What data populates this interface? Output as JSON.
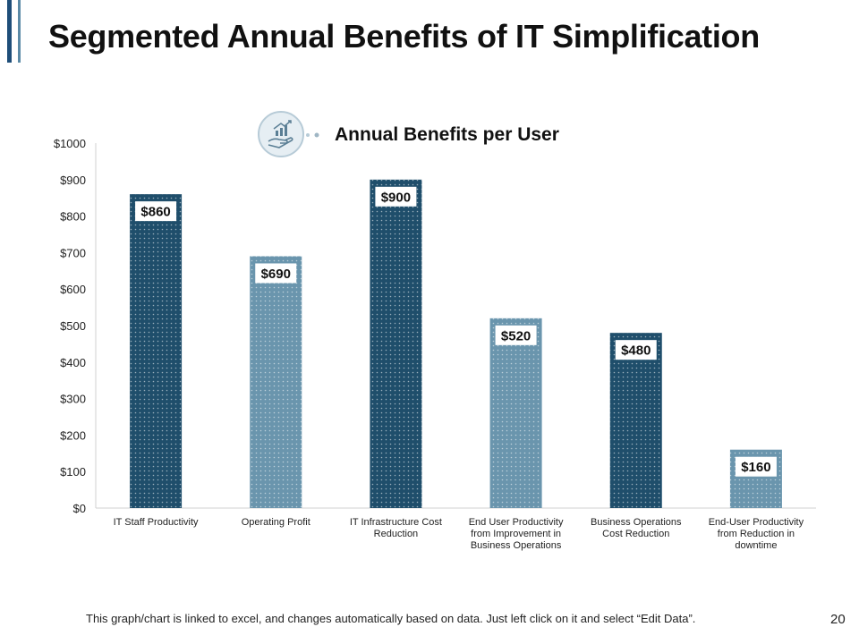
{
  "slide": {
    "title": "Segmented Annual Benefits of IT Simplification",
    "footnote": "This graph/chart is linked to excel, and changes automatically based on data. Just left click on it and select “Edit Data”.",
    "page_number": "20"
  },
  "legend": {
    "label": "Annual Benefits per User",
    "icon": "hand-with-growth-chart-icon"
  },
  "colors": {
    "dark": "#1f4e6b",
    "light": "#6a95ad",
    "accent": "#1f4e79"
  },
  "chart_data": {
    "type": "bar",
    "title": "",
    "legend": "Annual Benefits per User",
    "categories": [
      "IT Staff Productivity",
      "Operating Profit",
      "IT Infrastructure Cost Reduction",
      "End User Productivity from Improvement in Business Operations",
      "Business Operations Cost Reduction",
      "End-User Productivity from Reduction in downtime"
    ],
    "category_lines": [
      [
        "IT Staff Productivity"
      ],
      [
        "Operating Profit"
      ],
      [
        "IT Infrastructure Cost",
        "Reduction"
      ],
      [
        "End User Productivity",
        "from Improvement in",
        "Business Operations"
      ],
      [
        "Business Operations",
        "Cost Reduction"
      ],
      [
        "End-User Productivity",
        "from Reduction in",
        "downtime"
      ]
    ],
    "values": [
      860,
      690,
      900,
      520,
      480,
      160
    ],
    "data_labels": [
      "$860",
      "$690",
      "$900",
      "$520",
      "$480",
      "$160"
    ],
    "bar_shades": [
      "dark",
      "light",
      "dark",
      "light",
      "dark",
      "light"
    ],
    "yticks": [
      "$0",
      "$100",
      "$200",
      "$300",
      "$400",
      "$500",
      "$600",
      "$700",
      "$800",
      "$900",
      "$1000"
    ],
    "ylim": [
      0,
      1000
    ],
    "xlabel": "",
    "ylabel": ""
  }
}
